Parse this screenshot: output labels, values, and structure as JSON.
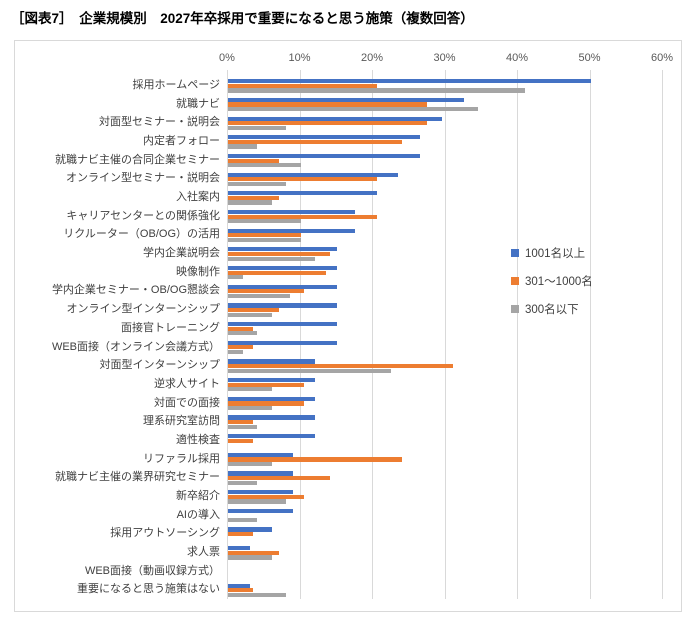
{
  "title": "［図表7］　企業規模別　2027年卒採用で重要になると思う施策（複数回答）",
  "colors": {
    "series_blue": "#4472c4",
    "series_orange": "#ed7d31",
    "series_gray": "#a5a5a5",
    "grid": "#d9d9d9",
    "axis_text": "#595959",
    "label_text": "#3f3f3f"
  },
  "chart_data": {
    "type": "bar",
    "orientation": "horizontal",
    "title": "企業規模別　2027年卒採用で重要になると思う施策（複数回答）",
    "xlabel": "",
    "ylabel": "",
    "xlim": [
      0,
      60
    ],
    "x_ticks": [
      "0%",
      "10%",
      "20%",
      "30%",
      "40%",
      "50%",
      "60%"
    ],
    "grid": true,
    "legend_position": "right",
    "categories": [
      "採用ホームページ",
      "就職ナビ",
      "対面型セミナー・説明会",
      "内定者フォロー",
      "就職ナビ主催の合同企業セミナー",
      "オンライン型セミナー・説明会",
      "入社案内",
      "キャリアセンターとの関係強化",
      "リクルーター（OB/OG）の活用",
      "学内企業説明会",
      "映像制作",
      "学内企業セミナー・OB/OG懇談会",
      "オンライン型インターンシップ",
      "面接官トレーニング",
      "WEB面接（オンライン会議方式）",
      "対面型インターンシップ",
      "逆求人サイト",
      "対面での面接",
      "理系研究室訪問",
      "適性検査",
      "リファラル採用",
      "就職ナビ主催の業界研究セミナー",
      "新卒紹介",
      "AIの導入",
      "採用アウトソーシング",
      "求人票",
      "WEB面接（動画収録方式）",
      "重要になると思う施策はない"
    ],
    "series": [
      {
        "name": "1001名以上",
        "color": "#4472c4",
        "values": [
          50,
          32.5,
          29.5,
          26.5,
          26.5,
          23.5,
          20.5,
          17.5,
          17.5,
          15,
          15,
          15,
          15,
          15,
          15,
          12,
          12,
          12,
          12,
          12,
          9,
          9,
          9,
          9,
          6,
          3,
          0,
          3
        ]
      },
      {
        "name": "301～1000名",
        "color": "#ed7d31",
        "values": [
          20.5,
          27.5,
          27.5,
          24,
          7,
          20.5,
          7,
          20.5,
          10,
          14,
          13.5,
          10.5,
          7,
          3.5,
          3.5,
          31,
          10.5,
          10.5,
          3.5,
          3.5,
          24,
          14,
          10.5,
          0,
          3.5,
          7,
          0,
          3.5
        ]
      },
      {
        "name": "300名以下",
        "color": "#a5a5a5",
        "values": [
          41,
          34.5,
          8,
          4,
          10,
          8,
          6,
          10,
          10,
          12,
          2,
          8.5,
          6,
          4,
          2,
          22.5,
          6,
          6,
          4,
          0,
          6,
          4,
          8,
          4,
          0,
          6,
          0,
          8
        ]
      }
    ]
  }
}
